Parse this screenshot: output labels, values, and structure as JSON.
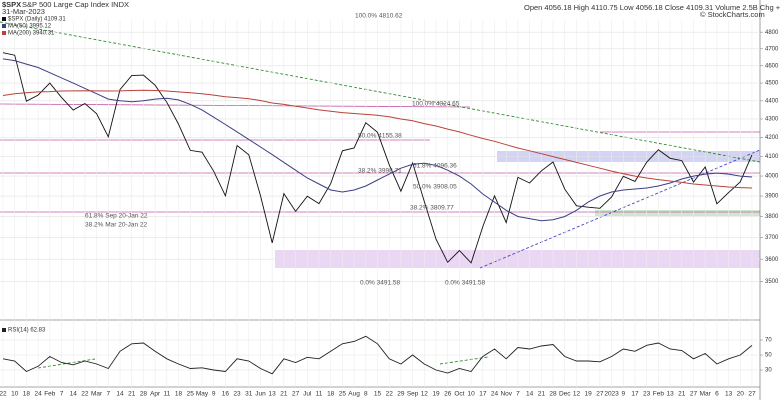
{
  "header": {
    "symbol": "$SPX",
    "name": "S&P 500 Large Cap Index INDX",
    "date": "31-Mar-2023",
    "quote": "Open 4056.18 High 4110.75 Low 4056.18 Close 4109.31 Volume 2.5B Chg +58.48 (+1.44%)",
    "credit": "© StockCharts.com"
  },
  "chart_data": [
    {
      "type": "line",
      "log_scale": true,
      "grid": true,
      "categories": [
        "22",
        "10",
        "18",
        "24",
        "Feb",
        "7",
        "14",
        "22",
        "Mar",
        "7",
        "14",
        "21",
        "28",
        "Apr",
        "11",
        "18",
        "25",
        "May",
        "9",
        "16",
        "23",
        "31",
        "Jun",
        "13",
        "21",
        "27",
        "Jul",
        "11",
        "18",
        "25",
        "Aug",
        "8",
        "15",
        "22",
        "29",
        "Sep",
        "12",
        "19",
        "26",
        "Oct",
        "10",
        "17",
        "24",
        "Nov",
        "7",
        "14",
        "21",
        "28",
        "Dec",
        "12",
        "19",
        "27",
        "2023",
        "9",
        "17",
        "23",
        "Feb",
        "13",
        "21",
        "27",
        "Mar",
        "6",
        "13",
        "20",
        "27"
      ],
      "series": [
        {
          "name": "$SPX (Daily) 4109.31",
          "color": "#111111",
          "values": [
            4677,
            4662,
            4398,
            4432,
            4500,
            4419,
            4349,
            4385,
            4329,
            4204,
            4463,
            4543,
            4546,
            4488,
            4392,
            4272,
            4132,
            4123,
            4024,
            3901,
            4158,
            4109,
            3901,
            3675,
            3912,
            3825,
            3899,
            3863,
            3962,
            4130,
            4145,
            4280,
            4228,
            4058,
            3924,
            4067,
            3873,
            3693,
            3586,
            3640,
            3583,
            3752,
            3901,
            3771,
            3993,
            3965,
            4026,
            4072,
            3934,
            3852,
            3845,
            3840,
            3895,
            3999,
            3973,
            4071,
            4136,
            4091,
            4079,
            3970,
            4046,
            3862,
            3917,
            3971,
            4109
          ]
        },
        {
          "name": "MA(50) 3995.12",
          "color": "#3b3f86",
          "values": [
            4640,
            4630,
            4610,
            4590,
            4560,
            4530,
            4500,
            4470,
            4440,
            4410,
            4400,
            4395,
            4400,
            4410,
            4415,
            4405,
            4380,
            4350,
            4310,
            4270,
            4230,
            4190,
            4150,
            4110,
            4070,
            4030,
            3990,
            3960,
            3930,
            3920,
            3930,
            3950,
            3980,
            4010,
            4040,
            4060,
            4065,
            4055,
            4030,
            4000,
            3960,
            3910,
            3870,
            3830,
            3800,
            3790,
            3780,
            3785,
            3800,
            3830,
            3870,
            3900,
            3920,
            3930,
            3935,
            3940,
            3950,
            3965,
            3985,
            4000,
            4010,
            4015,
            4010,
            4000,
            3995
          ]
        },
        {
          "name": "MA(200) 3940.31",
          "color": "#b8433a",
          "values": [
            4430,
            4440,
            4445,
            4450,
            4452,
            4455,
            4456,
            4457,
            4456,
            4455,
            4456,
            4458,
            4459,
            4458,
            4455,
            4450,
            4445,
            4440,
            4432,
            4423,
            4418,
            4412,
            4402,
            4388,
            4380,
            4370,
            4360,
            4350,
            4342,
            4335,
            4330,
            4325,
            4320,
            4312,
            4300,
            4290,
            4275,
            4262,
            4245,
            4230,
            4212,
            4195,
            4180,
            4162,
            4145,
            4130,
            4115,
            4100,
            4085,
            4070,
            4055,
            4040,
            4025,
            4012,
            4000,
            3990,
            3982,
            3975,
            3968,
            3960,
            3955,
            3950,
            3945,
            3942,
            3940
          ]
        }
      ],
      "ylim": [
        3350,
        4850
      ],
      "yticks": [
        3500,
        3600,
        3700,
        3800,
        3900,
        4000,
        4100,
        4200,
        4300,
        4400,
        4500,
        4600,
        4700,
        4800
      ],
      "annotations": [
        "100.0% 4810.62",
        "100.0% 4324.65",
        "50.0% 4155.38",
        "38.2% 3998.71",
        "61.8% 4096.36",
        "50.0% 3908.05",
        "38.2% 3809.77",
        "0.0% 3491.58",
        "0.0% 3491.58",
        "61.8% Sep 20-Jan 22",
        "38.2% Mar 20-Jan 22"
      ]
    },
    {
      "type": "line",
      "grid": true,
      "series": [
        {
          "name": "RSI(14) 62.83",
          "color": "#222222",
          "values": [
            45,
            42,
            28,
            35,
            48,
            40,
            37,
            42,
            38,
            32,
            55,
            65,
            66,
            55,
            45,
            38,
            32,
            33,
            30,
            28,
            45,
            42,
            32,
            25,
            45,
            40,
            47,
            45,
            55,
            65,
            68,
            75,
            65,
            45,
            38,
            50,
            38,
            30,
            26,
            32,
            28,
            48,
            58,
            45,
            60,
            58,
            62,
            64,
            48,
            42,
            42,
            41,
            48,
            58,
            55,
            63,
            66,
            58,
            56,
            45,
            52,
            38,
            45,
            50,
            62.83
          ]
        }
      ],
      "ylim": [
        10,
        90
      ],
      "yticks": [
        30,
        50,
        70
      ]
    }
  ]
}
